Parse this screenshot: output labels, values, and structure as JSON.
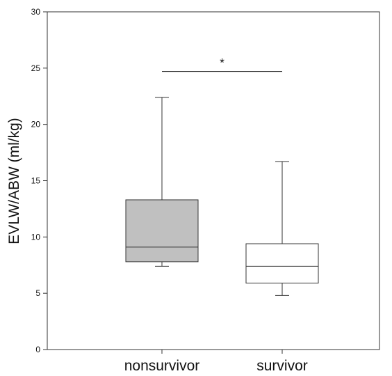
{
  "chart_data": {
    "type": "box",
    "title": "",
    "xlabel": "",
    "ylabel": "EVLW/ABW (ml/kg)",
    "ylim": [
      0,
      30
    ],
    "yticks": [
      "0",
      "5",
      "10",
      "15",
      "20",
      "25",
      "30"
    ],
    "grid": false,
    "categories": [
      "nonsurvivor",
      "survivor"
    ],
    "boxes": [
      {
        "category": "nonsurvivor",
        "whisker_low": 7.4,
        "q1": 7.8,
        "median": 9.1,
        "q3": 13.3,
        "whisker_high": 22.4,
        "fill": "#c0c0c0"
      },
      {
        "category": "survivor",
        "whisker_low": 4.8,
        "q1": 5.9,
        "median": 7.4,
        "q3": 9.4,
        "whisker_high": 16.7,
        "fill": "#ffffff"
      }
    ],
    "significance": {
      "label": "*",
      "from": "nonsurvivor",
      "to": "survivor",
      "y": 24.7
    }
  }
}
